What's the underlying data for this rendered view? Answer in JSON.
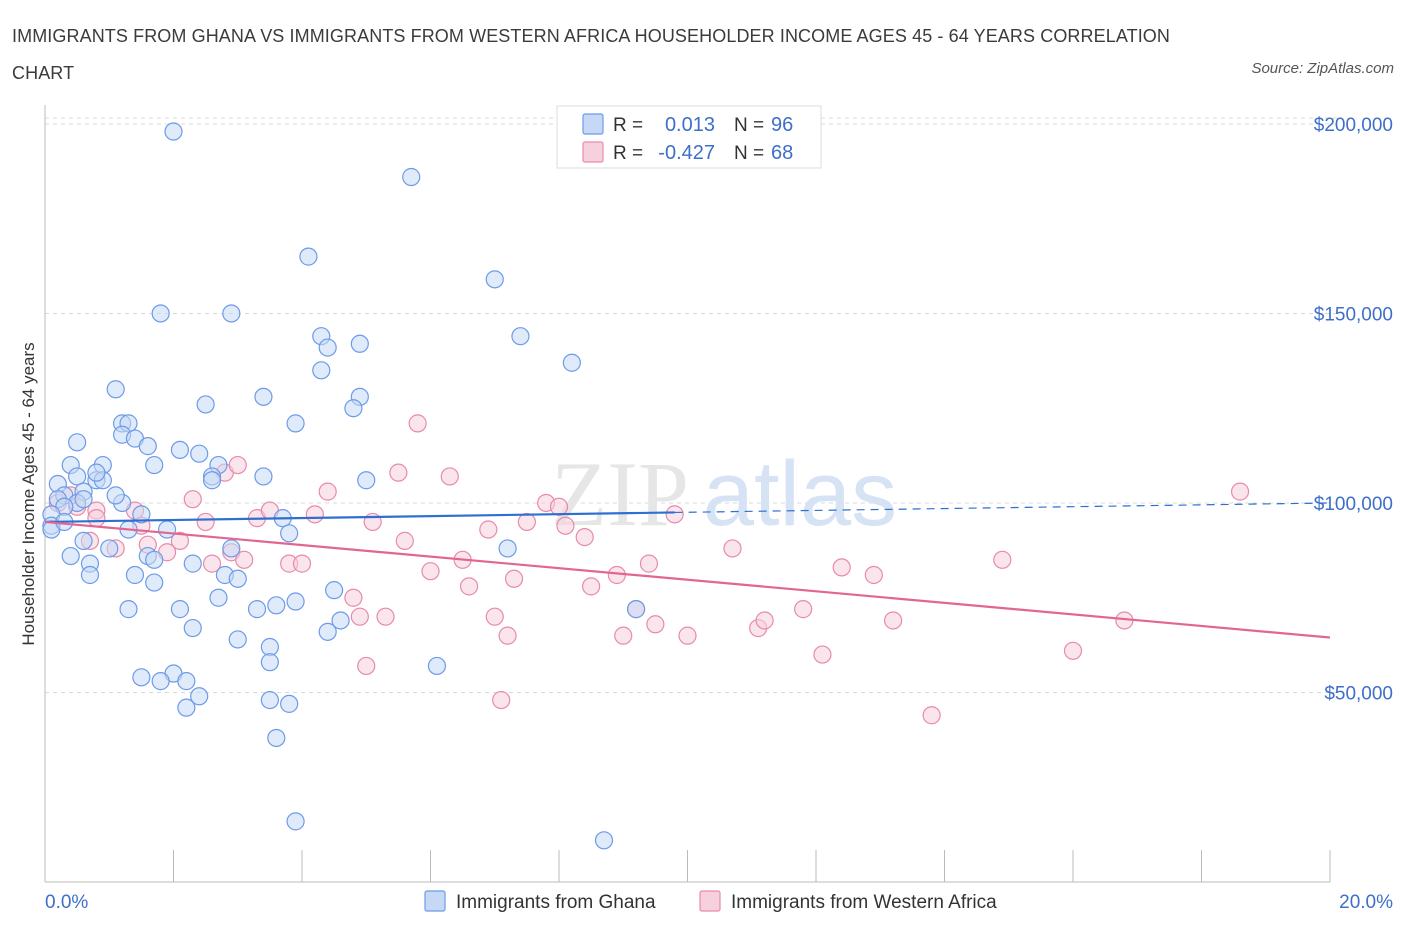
{
  "title": "IMMIGRANTS FROM GHANA VS IMMIGRANTS FROM WESTERN AFRICA HOUSEHOLDER INCOME AGES 45 - 64 YEARS CORRELATION CHART",
  "source": "Source: ZipAtlas.com",
  "watermark": {
    "zip": "ZIP",
    "atlas": "atlas"
  },
  "colors": {
    "ghana": "#6d9be8",
    "ghana_fill": "#c5d8f6",
    "ghana_line": "#2e6fd1",
    "wafrica": "#e88aab",
    "wafrica_fill": "#f7d0de",
    "wafrica_line": "#e26592",
    "axis_label": "#3d6fc9",
    "grid": "#d8d8d8"
  },
  "legend": {
    "r_label": "R =",
    "n_label": "N =",
    "rows": [
      {
        "r": "0.013",
        "n": "96"
      },
      {
        "r": "-0.427",
        "n": "68"
      }
    ]
  },
  "chart_data": {
    "type": "scatter",
    "title": "IMMIGRANTS FROM GHANA VS IMMIGRANTS FROM WESTERN AFRICA HOUSEHOLDER INCOME AGES 45 - 64 YEARS CORRELATION CHART",
    "xlabel": "",
    "ylabel": "Householder Income Ages 45 - 64 years",
    "xlim": [
      0,
      20
    ],
    "ylim": [
      0,
      205000
    ],
    "x_tick_labels": [
      "0.0%",
      "20.0%"
    ],
    "y_ticks": [
      50000,
      100000,
      150000,
      200000
    ],
    "y_tick_labels": [
      "$50,000",
      "$100,000",
      "$150,000",
      "$200,000"
    ],
    "grid": true,
    "legend_position": "top-center",
    "series": [
      {
        "name": "Immigrants from Ghana",
        "r": 0.013,
        "n": 96,
        "trend": {
          "x": [
            0.0,
            9.8
          ],
          "y": [
            95000,
            97500
          ],
          "dashed_to": [
            20.0,
            100000
          ]
        },
        "points": [
          [
            2.0,
            198000
          ],
          [
            5.7,
            186000
          ],
          [
            4.1,
            165000
          ],
          [
            7.0,
            159000
          ],
          [
            1.8,
            150000
          ],
          [
            2.9,
            150000
          ],
          [
            4.3,
            144000
          ],
          [
            4.4,
            141000
          ],
          [
            4.9,
            142000
          ],
          [
            7.4,
            144000
          ],
          [
            8.2,
            137000
          ],
          [
            4.3,
            135000
          ],
          [
            1.1,
            130000
          ],
          [
            3.4,
            128000
          ],
          [
            4.9,
            128000
          ],
          [
            4.8,
            125000
          ],
          [
            2.5,
            126000
          ],
          [
            1.2,
            121000
          ],
          [
            1.3,
            121000
          ],
          [
            3.9,
            121000
          ],
          [
            1.2,
            118000
          ],
          [
            1.4,
            117000
          ],
          [
            0.5,
            116000
          ],
          [
            1.6,
            115000
          ],
          [
            2.1,
            114000
          ],
          [
            2.4,
            113000
          ],
          [
            1.7,
            110000
          ],
          [
            2.7,
            110000
          ],
          [
            0.4,
            110000
          ],
          [
            0.9,
            110000
          ],
          [
            3.4,
            107000
          ],
          [
            2.6,
            107000
          ],
          [
            2.6,
            106000
          ],
          [
            0.5,
            107000
          ],
          [
            0.8,
            106000
          ],
          [
            0.9,
            106000
          ],
          [
            5.0,
            106000
          ],
          [
            0.2,
            105000
          ],
          [
            0.6,
            103000
          ],
          [
            0.3,
            102000
          ],
          [
            0.2,
            101000
          ],
          [
            0.5,
            100000
          ],
          [
            0.3,
            99000
          ],
          [
            0.1,
            97000
          ],
          [
            1.5,
            97000
          ],
          [
            3.7,
            96000
          ],
          [
            0.1,
            94000
          ],
          [
            0.1,
            93000
          ],
          [
            1.3,
            93000
          ],
          [
            1.9,
            93000
          ],
          [
            3.8,
            92000
          ],
          [
            0.6,
            90000
          ],
          [
            1.0,
            88000
          ],
          [
            2.9,
            88000
          ],
          [
            7.2,
            88000
          ],
          [
            0.4,
            86000
          ],
          [
            1.6,
            86000
          ],
          [
            1.7,
            85000
          ],
          [
            0.7,
            84000
          ],
          [
            2.3,
            84000
          ],
          [
            0.7,
            81000
          ],
          [
            1.4,
            81000
          ],
          [
            2.8,
            81000
          ],
          [
            3.0,
            80000
          ],
          [
            1.7,
            79000
          ],
          [
            4.5,
            77000
          ],
          [
            2.7,
            75000
          ],
          [
            3.9,
            74000
          ],
          [
            3.6,
            73000
          ],
          [
            2.1,
            72000
          ],
          [
            3.3,
            72000
          ],
          [
            1.3,
            72000
          ],
          [
            9.2,
            72000
          ],
          [
            4.6,
            69000
          ],
          [
            2.3,
            67000
          ],
          [
            4.4,
            66000
          ],
          [
            3.0,
            64000
          ],
          [
            3.5,
            62000
          ],
          [
            3.5,
            58000
          ],
          [
            6.1,
            57000
          ],
          [
            2.0,
            55000
          ],
          [
            1.5,
            54000
          ],
          [
            1.8,
            53000
          ],
          [
            2.2,
            53000
          ],
          [
            2.4,
            49000
          ],
          [
            3.5,
            48000
          ],
          [
            3.8,
            47000
          ],
          [
            2.2,
            46000
          ],
          [
            3.6,
            38000
          ],
          [
            3.9,
            16000
          ],
          [
            8.7,
            11000
          ],
          [
            1.2,
            100000
          ],
          [
            0.6,
            101000
          ],
          [
            1.1,
            102000
          ],
          [
            0.8,
            108000
          ],
          [
            0.3,
            95000
          ]
        ]
      },
      {
        "name": "Immigrants from Western Africa",
        "r": -0.427,
        "n": 68,
        "trend": {
          "x": [
            0.0,
            20.0
          ],
          "y": [
            95000,
            64500
          ]
        },
        "points": [
          [
            0.2,
            100000
          ],
          [
            0.5,
            99000
          ],
          [
            0.8,
            98000
          ],
          [
            0.8,
            96000
          ],
          [
            0.4,
            102000
          ],
          [
            0.7,
            90000
          ],
          [
            1.1,
            88000
          ],
          [
            1.4,
            98000
          ],
          [
            1.5,
            94000
          ],
          [
            1.6,
            89000
          ],
          [
            1.9,
            87000
          ],
          [
            2.1,
            90000
          ],
          [
            2.3,
            101000
          ],
          [
            2.5,
            95000
          ],
          [
            2.6,
            84000
          ],
          [
            2.8,
            108000
          ],
          [
            2.9,
            87000
          ],
          [
            3.1,
            85000
          ],
          [
            3.3,
            96000
          ],
          [
            3.5,
            98000
          ],
          [
            3.8,
            84000
          ],
          [
            4.0,
            84000
          ],
          [
            4.2,
            97000
          ],
          [
            4.4,
            103000
          ],
          [
            4.8,
            75000
          ],
          [
            4.9,
            70000
          ],
          [
            5.0,
            57000
          ],
          [
            5.1,
            95000
          ],
          [
            5.3,
            70000
          ],
          [
            5.5,
            108000
          ],
          [
            5.6,
            90000
          ],
          [
            6.0,
            82000
          ],
          [
            6.3,
            107000
          ],
          [
            6.5,
            85000
          ],
          [
            6.6,
            78000
          ],
          [
            6.9,
            93000
          ],
          [
            7.0,
            70000
          ],
          [
            7.2,
            65000
          ],
          [
            7.3,
            80000
          ],
          [
            7.5,
            95000
          ],
          [
            7.8,
            100000
          ],
          [
            8.0,
            99000
          ],
          [
            8.1,
            94000
          ],
          [
            8.4,
            91000
          ],
          [
            8.5,
            78000
          ],
          [
            8.9,
            81000
          ],
          [
            9.0,
            65000
          ],
          [
            9.2,
            72000
          ],
          [
            9.4,
            84000
          ],
          [
            9.5,
            68000
          ],
          [
            9.8,
            97000
          ],
          [
            10.0,
            65000
          ],
          [
            10.7,
            88000
          ],
          [
            11.1,
            67000
          ],
          [
            11.2,
            69000
          ],
          [
            11.8,
            72000
          ],
          [
            12.1,
            60000
          ],
          [
            12.4,
            83000
          ],
          [
            12.9,
            81000
          ],
          [
            13.2,
            69000
          ],
          [
            13.8,
            44000
          ],
          [
            14.9,
            85000
          ],
          [
            16.0,
            61000
          ],
          [
            16.8,
            69000
          ],
          [
            18.6,
            103000
          ],
          [
            3.0,
            110000
          ],
          [
            5.8,
            121000
          ],
          [
            7.1,
            48000
          ]
        ]
      }
    ]
  },
  "bottom_legend": [
    {
      "label": "Immigrants from Ghana"
    },
    {
      "label": "Immigrants from Western Africa"
    }
  ]
}
